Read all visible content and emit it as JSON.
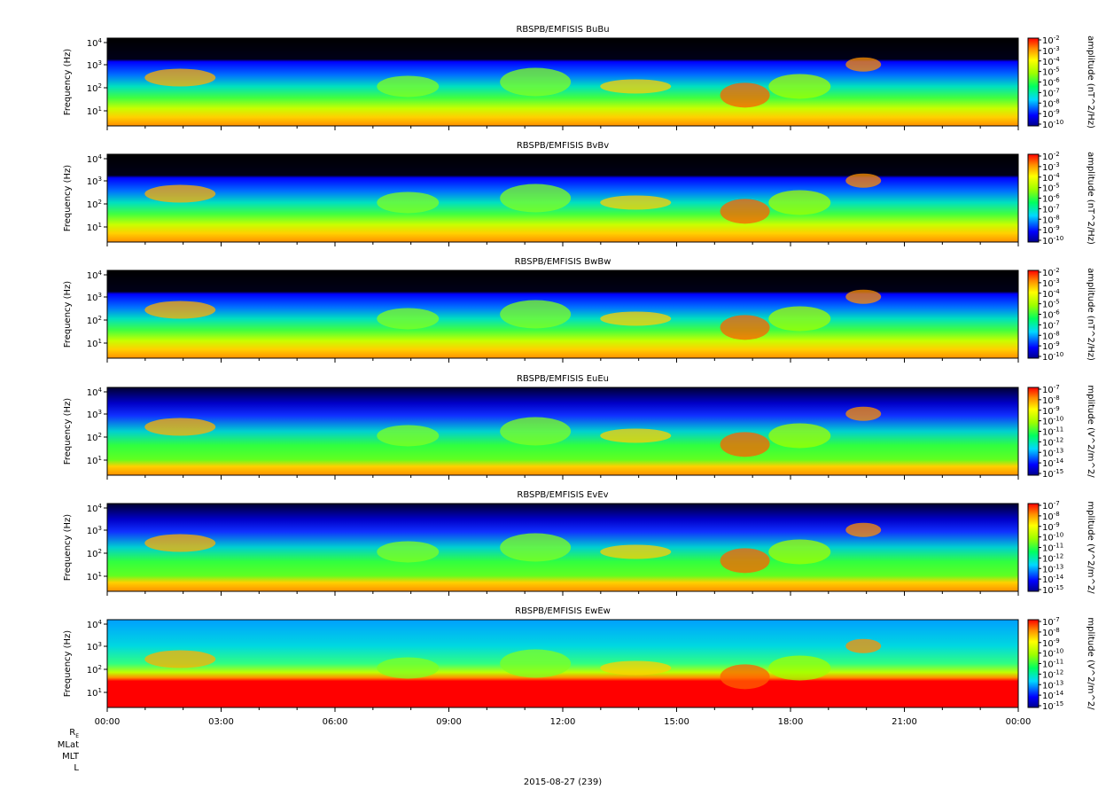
{
  "figure": {
    "date_label": "2015-08-27 (239)",
    "ephemeris_labels": [
      "RE",
      "MLat",
      "MLT",
      "L"
    ],
    "x_ticks": [
      "00:00",
      "03:00",
      "06:00",
      "09:00",
      "12:00",
      "15:00",
      "18:00",
      "21:00",
      "00:00"
    ]
  },
  "chart_data": [
    {
      "type": "heatmap",
      "title": "RBSPB/EMFISIS  BuBu",
      "ylabel": "Frequency (Hz)",
      "yscale": "log",
      "y_ticks": [
        "10^1",
        "10^2",
        "10^3",
        "10^4"
      ],
      "colorbar_label": "amplitude (nT^2/Hz)",
      "colorbar_ticks": [
        "10^-2",
        "10^-3",
        "10^-4",
        "10^-5",
        "10^-6",
        "10^-7",
        "10^-8",
        "10^-9",
        "10^-10"
      ]
    },
    {
      "type": "heatmap",
      "title": "RBSPB/EMFISIS  BvBv",
      "ylabel": "Frequency (Hz)",
      "yscale": "log",
      "y_ticks": [
        "10^1",
        "10^2",
        "10^3",
        "10^4"
      ],
      "colorbar_label": "amplitude (nT^2/Hz)",
      "colorbar_ticks": [
        "10^-2",
        "10^-3",
        "10^-4",
        "10^-5",
        "10^-6",
        "10^-7",
        "10^-8",
        "10^-9",
        "10^-10"
      ]
    },
    {
      "type": "heatmap",
      "title": "RBSPB/EMFISIS  BwBw",
      "ylabel": "Frequency (Hz)",
      "yscale": "log",
      "y_ticks": [
        "10^1",
        "10^2",
        "10^3",
        "10^4"
      ],
      "colorbar_label": "amplitude (nT^2/Hz)",
      "colorbar_ticks": [
        "10^-2",
        "10^-3",
        "10^-4",
        "10^-5",
        "10^-6",
        "10^-7",
        "10^-8",
        "10^-9",
        "10^-10"
      ]
    },
    {
      "type": "heatmap",
      "title": "RBSPB/EMFISIS  EuEu",
      "ylabel": "Frequency (Hz)",
      "yscale": "log",
      "y_ticks": [
        "10^1",
        "10^2",
        "10^3",
        "10^4"
      ],
      "colorbar_label": "mplitude (V^2/m^2/",
      "colorbar_ticks": [
        "10^-7",
        "10^-8",
        "10^-9",
        "10^-10",
        "10^-11",
        "10^-12",
        "10^-13",
        "10^-14",
        "10^-15"
      ]
    },
    {
      "type": "heatmap",
      "title": "RBSPB/EMFISIS  EvEv",
      "ylabel": "Frequency (Hz)",
      "yscale": "log",
      "y_ticks": [
        "10^1",
        "10^2",
        "10^3",
        "10^4"
      ],
      "colorbar_label": "mplitude (V^2/m^2/",
      "colorbar_ticks": [
        "10^-7",
        "10^-8",
        "10^-9",
        "10^-10",
        "10^-11",
        "10^-12",
        "10^-13",
        "10^-14",
        "10^-15"
      ]
    },
    {
      "type": "heatmap",
      "title": "RBSPB/EMFISIS  EwEw",
      "ylabel": "Frequency (Hz)",
      "yscale": "log",
      "y_ticks": [
        "10^1",
        "10^2",
        "10^3",
        "10^4"
      ],
      "colorbar_label": "mplitude (V^2/m^2/",
      "colorbar_ticks": [
        "10^-7",
        "10^-8",
        "10^-9",
        "10^-10",
        "10^-11",
        "10^-12",
        "10^-13",
        "10^-14",
        "10^-15"
      ]
    }
  ]
}
